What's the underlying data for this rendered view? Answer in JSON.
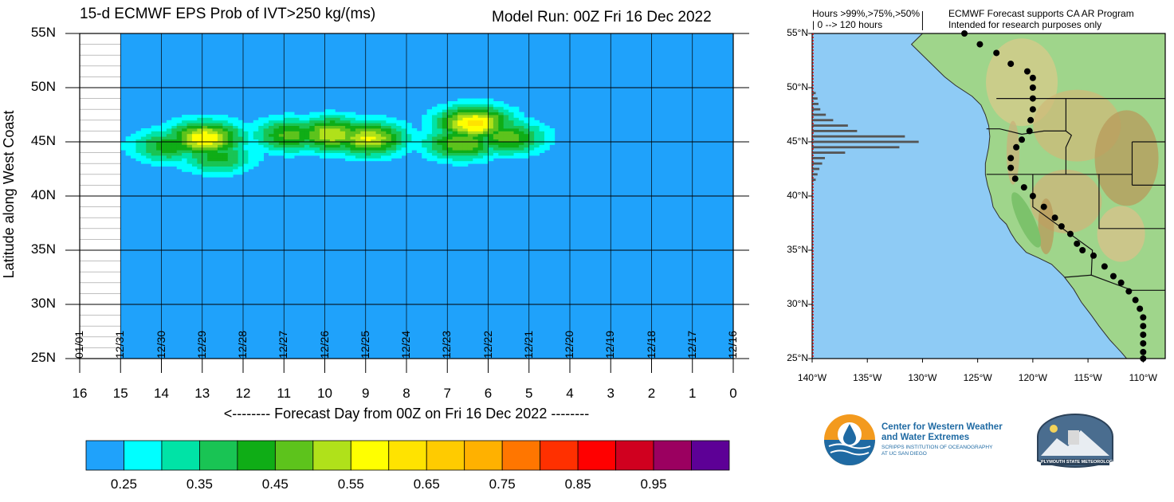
{
  "chart_data": [
    {
      "type": "heatmap",
      "title": "15-d ECMWF EPS Prob of IVT>250 kg/(ms)",
      "subtitle": "Model Run: 00Z Fri 16 Dec 2022",
      "xlabel": "<-------- Forecast Day from 00Z on Fri 16 Dec 2022 --------",
      "ylabel": "Latitude along West Coast",
      "x_ticks": [
        "16",
        "15",
        "14",
        "13",
        "12",
        "11",
        "10",
        "9",
        "8",
        "7",
        "6",
        "5",
        "4",
        "3",
        "2",
        "1",
        "0"
      ],
      "x_reversed": true,
      "xlim": [
        16,
        0
      ],
      "y_ticks": [
        "25N",
        "30N",
        "35N",
        "40N",
        "45N",
        "50N",
        "55N"
      ],
      "ylim": [
        25,
        55
      ],
      "date_labels": [
        "01/01",
        "12/31",
        "12/30",
        "12/29",
        "12/28",
        "12/27",
        "12/26",
        "12/25",
        "12/24",
        "12/23",
        "12/22",
        "12/21",
        "12/20",
        "12/19",
        "12/18",
        "12/17",
        "12/16"
      ],
      "background_value": 0.2,
      "blobs": [
        {
          "day": 13.0,
          "lat": 45.2,
          "peak": 0.6
        },
        {
          "day": 12.7,
          "lat": 43.5,
          "peak": 0.42
        },
        {
          "day": 13.9,
          "lat": 44.5,
          "peak": 0.43
        },
        {
          "day": 10.9,
          "lat": 45.5,
          "peak": 0.47
        },
        {
          "day": 9.9,
          "lat": 45.6,
          "peak": 0.55
        },
        {
          "day": 9.0,
          "lat": 45.2,
          "peak": 0.56
        },
        {
          "day": 6.4,
          "lat": 46.6,
          "peak": 0.62
        },
        {
          "day": 6.7,
          "lat": 44.8,
          "peak": 0.5
        },
        {
          "day": 5.6,
          "lat": 45.3,
          "peak": 0.48
        }
      ],
      "colorbar": {
        "colors": [
          "#1fa2fb",
          "#00ffff",
          "#00e3a6",
          "#19c454",
          "#0fad16",
          "#5dc31c",
          "#b0e11a",
          "#ffff00",
          "#ffe300",
          "#ffcb00",
          "#ffb100",
          "#ff7600",
          "#ff3000",
          "#ff0000",
          "#d0001f",
          "#9b0060",
          "#5d0096"
        ],
        "labels": [
          "0.25",
          "0.35",
          "0.45",
          "0.55",
          "0.65",
          "0.75",
          "0.85",
          "0.95"
        ],
        "min": 0.2,
        "max": 1.05,
        "step": 0.05
      }
    },
    {
      "type": "map",
      "legend_lines": [
        "Hours >99%,>75%,>50%",
        "| 0 --> 120 hours"
      ],
      "notes": [
        "ECMWF Forecast supports CA AR Program",
        "Intended for research purposes only"
      ],
      "x_ticks": [
        "140°W",
        "135°W",
        "130°W",
        "125°W",
        "120°W",
        "115°W",
        "110°W"
      ],
      "xlim": [
        -140,
        -108
      ],
      "y_ticks": [
        "25°N",
        "30°N",
        "35°N",
        "40°N",
        "45°N",
        "50°N",
        "55°N"
      ],
      "ylim": [
        25,
        55
      ],
      "bar_hours": [
        {
          "lat": 49.5,
          "hours": 3
        },
        {
          "lat": 49,
          "hours": 5
        },
        {
          "lat": 48.5,
          "hours": 6
        },
        {
          "lat": 48,
          "hours": 8
        },
        {
          "lat": 47.5,
          "hours": 14
        },
        {
          "lat": 47,
          "hours": 22
        },
        {
          "lat": 46.5,
          "hours": 38
        },
        {
          "lat": 46,
          "hours": 48
        },
        {
          "lat": 45.5,
          "hours": 100
        },
        {
          "lat": 45,
          "hours": 115
        },
        {
          "lat": 44.5,
          "hours": 94
        },
        {
          "lat": 44,
          "hours": 35
        },
        {
          "lat": 43.5,
          "hours": 13
        },
        {
          "lat": 43,
          "hours": 10
        },
        {
          "lat": 42.5,
          "hours": 7
        },
        {
          "lat": 42,
          "hours": 5
        },
        {
          "lat": 41.5,
          "hours": 3
        }
      ],
      "coast_points": [
        [
          -126.2,
          55
        ],
        [
          -124.8,
          54
        ],
        [
          -123.3,
          53.2
        ],
        [
          -122,
          52.2
        ],
        [
          -120.5,
          51.5
        ],
        [
          -120,
          50.9
        ],
        [
          -120,
          50
        ],
        [
          -120,
          49
        ],
        [
          -120,
          48
        ],
        [
          -120.2,
          47
        ],
        [
          -120.3,
          46
        ],
        [
          -121,
          45.2
        ],
        [
          -121.5,
          44.5
        ],
        [
          -122,
          43.5
        ],
        [
          -122,
          42.6
        ],
        [
          -121.6,
          41.6
        ],
        [
          -120.8,
          40.8
        ],
        [
          -120,
          40
        ],
        [
          -119,
          39
        ],
        [
          -118,
          38
        ],
        [
          -117.4,
          37.2
        ],
        [
          -116.6,
          36.5
        ],
        [
          -116,
          35.6
        ],
        [
          -115.5,
          35
        ],
        [
          -114.5,
          34.5
        ],
        [
          -113.5,
          33.5
        ],
        [
          -112.7,
          32.6
        ],
        [
          -112,
          32
        ],
        [
          -111.3,
          31.2
        ],
        [
          -110.7,
          30.4
        ],
        [
          -110.3,
          29.6
        ],
        [
          -110,
          28.8
        ],
        [
          -110,
          28
        ],
        [
          -110,
          27.2
        ],
        [
          -110,
          26.4
        ],
        [
          -110,
          25.6
        ],
        [
          -110,
          25
        ]
      ]
    }
  ],
  "logos": {
    "cw3e_line1": "Center for Western Weather",
    "cw3e_line2": "and Water Extremes",
    "cw3e_line3": "SCRIPPS INSTITUTION OF OCEANOGRAPHY",
    "cw3e_line4": "AT UC SAN DIEGO",
    "plymouth": "PLYMOUTH STATE METEOROLOGY"
  }
}
